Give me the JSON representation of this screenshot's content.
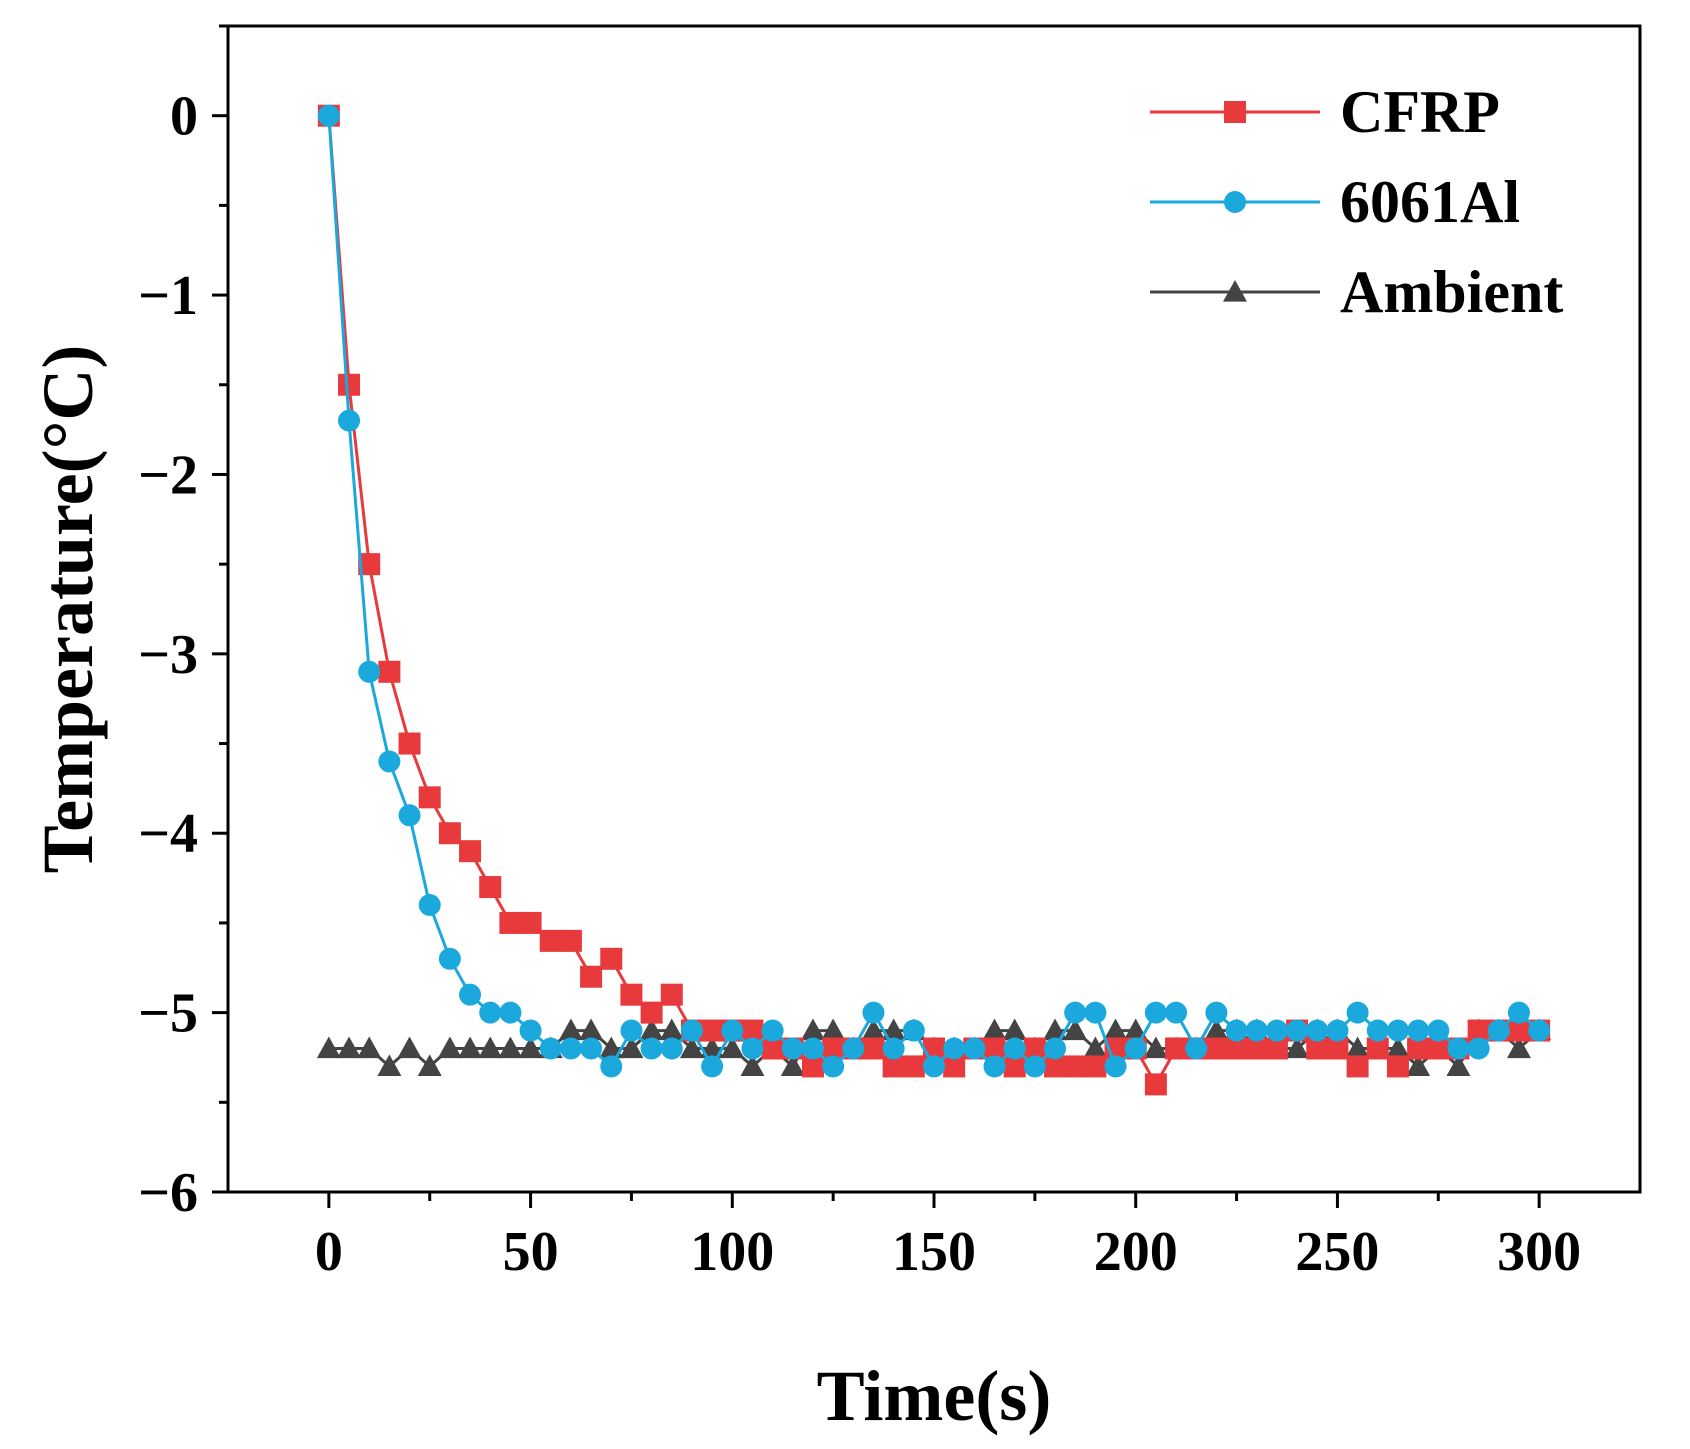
{
  "chart_data": {
    "type": "line",
    "title": "",
    "xlabel": "Time(s)",
    "ylabel": "Temperature(°C)",
    "xlim": [
      -25,
      325
    ],
    "ylim": [
      -6,
      0.5
    ],
    "xticks": [
      0,
      50,
      100,
      150,
      200,
      250,
      300
    ],
    "xtick_labels": [
      "0",
      "50",
      "100",
      "150",
      "200",
      "250",
      "300"
    ],
    "yticks": [
      0,
      -1,
      -2,
      -3,
      -4,
      -5,
      -6
    ],
    "ytick_labels": [
      "0",
      "−1",
      "−2",
      "−3",
      "−4",
      "−5",
      "−6"
    ],
    "legend_position": "top-right",
    "series": [
      {
        "name": "CFRP",
        "color": "#e8393c",
        "marker": "square",
        "x": [
          0,
          5,
          10,
          15,
          20,
          25,
          30,
          35,
          40,
          45,
          50,
          55,
          60,
          65,
          70,
          75,
          80,
          85,
          90,
          95,
          100,
          105,
          110,
          115,
          120,
          125,
          130,
          135,
          140,
          145,
          150,
          155,
          160,
          165,
          170,
          175,
          180,
          185,
          190,
          195,
          200,
          205,
          210,
          215,
          220,
          225,
          230,
          235,
          240,
          245,
          250,
          255,
          260,
          265,
          270,
          275,
          280,
          285,
          290,
          295,
          300
        ],
        "y": [
          0,
          -1.5,
          -2.5,
          -3.1,
          -3.5,
          -3.8,
          -4.0,
          -4.1,
          -4.3,
          -4.5,
          -4.5,
          -4.6,
          -4.6,
          -4.8,
          -4.7,
          -4.9,
          -5.0,
          -4.9,
          -5.1,
          -5.1,
          -5.1,
          -5.1,
          -5.2,
          -5.2,
          -5.3,
          -5.2,
          -5.2,
          -5.2,
          -5.3,
          -5.3,
          -5.2,
          -5.3,
          -5.2,
          -5.2,
          -5.3,
          -5.2,
          -5.3,
          -5.3,
          -5.3,
          -5.2,
          -5.2,
          -5.4,
          -5.2,
          -5.2,
          -5.2,
          -5.2,
          -5.2,
          -5.2,
          -5.1,
          -5.2,
          -5.2,
          -5.3,
          -5.2,
          -5.3,
          -5.2,
          -5.2,
          -5.2,
          -5.1,
          -5.1,
          -5.1,
          -5.1
        ]
      },
      {
        "name": "6061Al",
        "color": "#1aa8dd",
        "marker": "circle",
        "x": [
          0,
          5,
          10,
          15,
          20,
          25,
          30,
          35,
          40,
          45,
          50,
          55,
          60,
          65,
          70,
          75,
          80,
          85,
          90,
          95,
          100,
          105,
          110,
          115,
          120,
          125,
          130,
          135,
          140,
          145,
          150,
          155,
          160,
          165,
          170,
          175,
          180,
          185,
          190,
          195,
          200,
          205,
          210,
          215,
          220,
          225,
          230,
          235,
          240,
          245,
          250,
          255,
          260,
          265,
          270,
          275,
          280,
          285,
          290,
          295,
          300
        ],
        "y": [
          0,
          -1.7,
          -3.1,
          -3.6,
          -3.9,
          -4.4,
          -4.7,
          -4.9,
          -5.0,
          -5.0,
          -5.1,
          -5.2,
          -5.2,
          -5.2,
          -5.3,
          -5.1,
          -5.2,
          -5.2,
          -5.1,
          -5.3,
          -5.1,
          -5.2,
          -5.1,
          -5.2,
          -5.2,
          -5.3,
          -5.2,
          -5.0,
          -5.2,
          -5.1,
          -5.3,
          -5.2,
          -5.2,
          -5.3,
          -5.2,
          -5.3,
          -5.2,
          -5.0,
          -5.0,
          -5.3,
          -5.2,
          -5.0,
          -5.0,
          -5.2,
          -5.0,
          -5.1,
          -5.1,
          -5.1,
          -5.1,
          -5.1,
          -5.1,
          -5.0,
          -5.1,
          -5.1,
          -5.1,
          -5.1,
          -5.2,
          -5.2,
          -5.1,
          -5.0,
          -5.1
        ]
      },
      {
        "name": "Ambient",
        "color": "#444444",
        "marker": "triangle",
        "x": [
          0,
          5,
          10,
          15,
          20,
          25,
          30,
          35,
          40,
          45,
          50,
          55,
          60,
          65,
          70,
          75,
          80,
          85,
          90,
          95,
          100,
          105,
          110,
          115,
          120,
          125,
          130,
          135,
          140,
          145,
          150,
          155,
          160,
          165,
          170,
          175,
          180,
          185,
          190,
          195,
          200,
          205,
          210,
          215,
          220,
          225,
          230,
          235,
          240,
          245,
          250,
          255,
          260,
          265,
          270,
          275,
          280,
          285,
          290,
          295,
          300
        ],
        "y": [
          -5.2,
          -5.2,
          -5.2,
          -5.3,
          -5.2,
          -5.3,
          -5.2,
          -5.2,
          -5.2,
          -5.2,
          -5.2,
          -5.2,
          -5.1,
          -5.1,
          -5.2,
          -5.2,
          -5.1,
          -5.1,
          -5.2,
          -5.2,
          -5.2,
          -5.3,
          -5.2,
          -5.3,
          -5.1,
          -5.1,
          -5.2,
          -5.1,
          -5.1,
          -5.1,
          -5.2,
          -5.2,
          -5.2,
          -5.1,
          -5.1,
          -5.2,
          -5.1,
          -5.1,
          -5.2,
          -5.1,
          -5.1,
          -5.2,
          -5.2,
          -5.2,
          -5.1,
          -5.1,
          -5.1,
          -5.2,
          -5.2,
          -5.1,
          -5.1,
          -5.2,
          -5.2,
          -5.2,
          -5.3,
          -5.2,
          -5.3,
          -5.1,
          -5.1,
          -5.2,
          -5.1
        ]
      }
    ]
  }
}
